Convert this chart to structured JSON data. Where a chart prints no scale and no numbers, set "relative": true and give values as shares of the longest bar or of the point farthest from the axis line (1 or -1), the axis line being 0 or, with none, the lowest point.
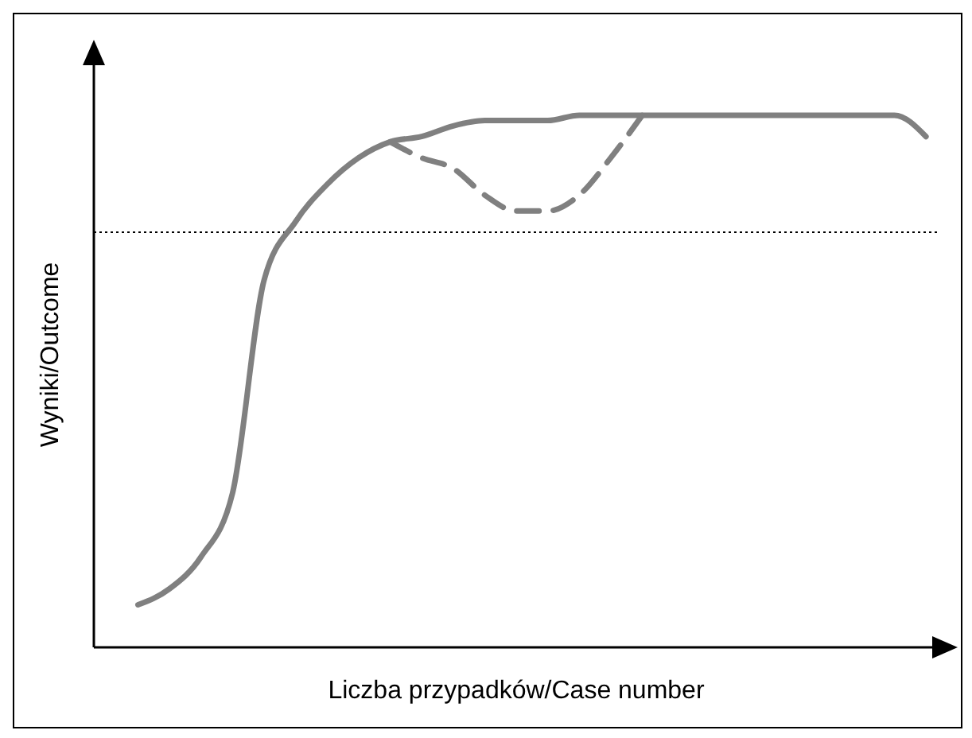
{
  "chart_data": {
    "type": "line",
    "relative": true,
    "xlabel": "Liczba przypadków/Case number",
    "ylabel": "Wyniki/Outcome",
    "categories": [
      null,
      null,
      null,
      null,
      null,
      null,
      null,
      null,
      null,
      null,
      null,
      null,
      null,
      null,
      null,
      null,
      null,
      null,
      null,
      null,
      null,
      null,
      null,
      null,
      null,
      null
    ],
    "series": [
      {
        "color": "#808080",
        "line_style": "solid",
        "values": [
          0.08,
          0.11,
          0.17,
          0.29,
          0.69,
          0.8,
          0.87,
          0.92,
          0.95,
          0.96,
          0.98,
          0.99,
          0.99,
          0.99,
          1.0,
          1.0,
          1.0,
          1.0,
          1.0,
          1.0,
          1.0,
          1.0,
          1.0,
          1.0,
          1.0,
          0.96
        ]
      },
      {
        "color": "#808080",
        "line_style": "dashed",
        "values": [
          null,
          null,
          null,
          null,
          null,
          null,
          null,
          null,
          0.95,
          0.92,
          0.9,
          0.85,
          0.82,
          0.82,
          0.85,
          0.92,
          1.0,
          null,
          null,
          null,
          null,
          null,
          null,
          null,
          null,
          null
        ]
      }
    ],
    "ref_lines": [
      {
        "axis": "y",
        "value": 0.78,
        "color": "#000000",
        "line_style": "dotted"
      }
    ]
  }
}
